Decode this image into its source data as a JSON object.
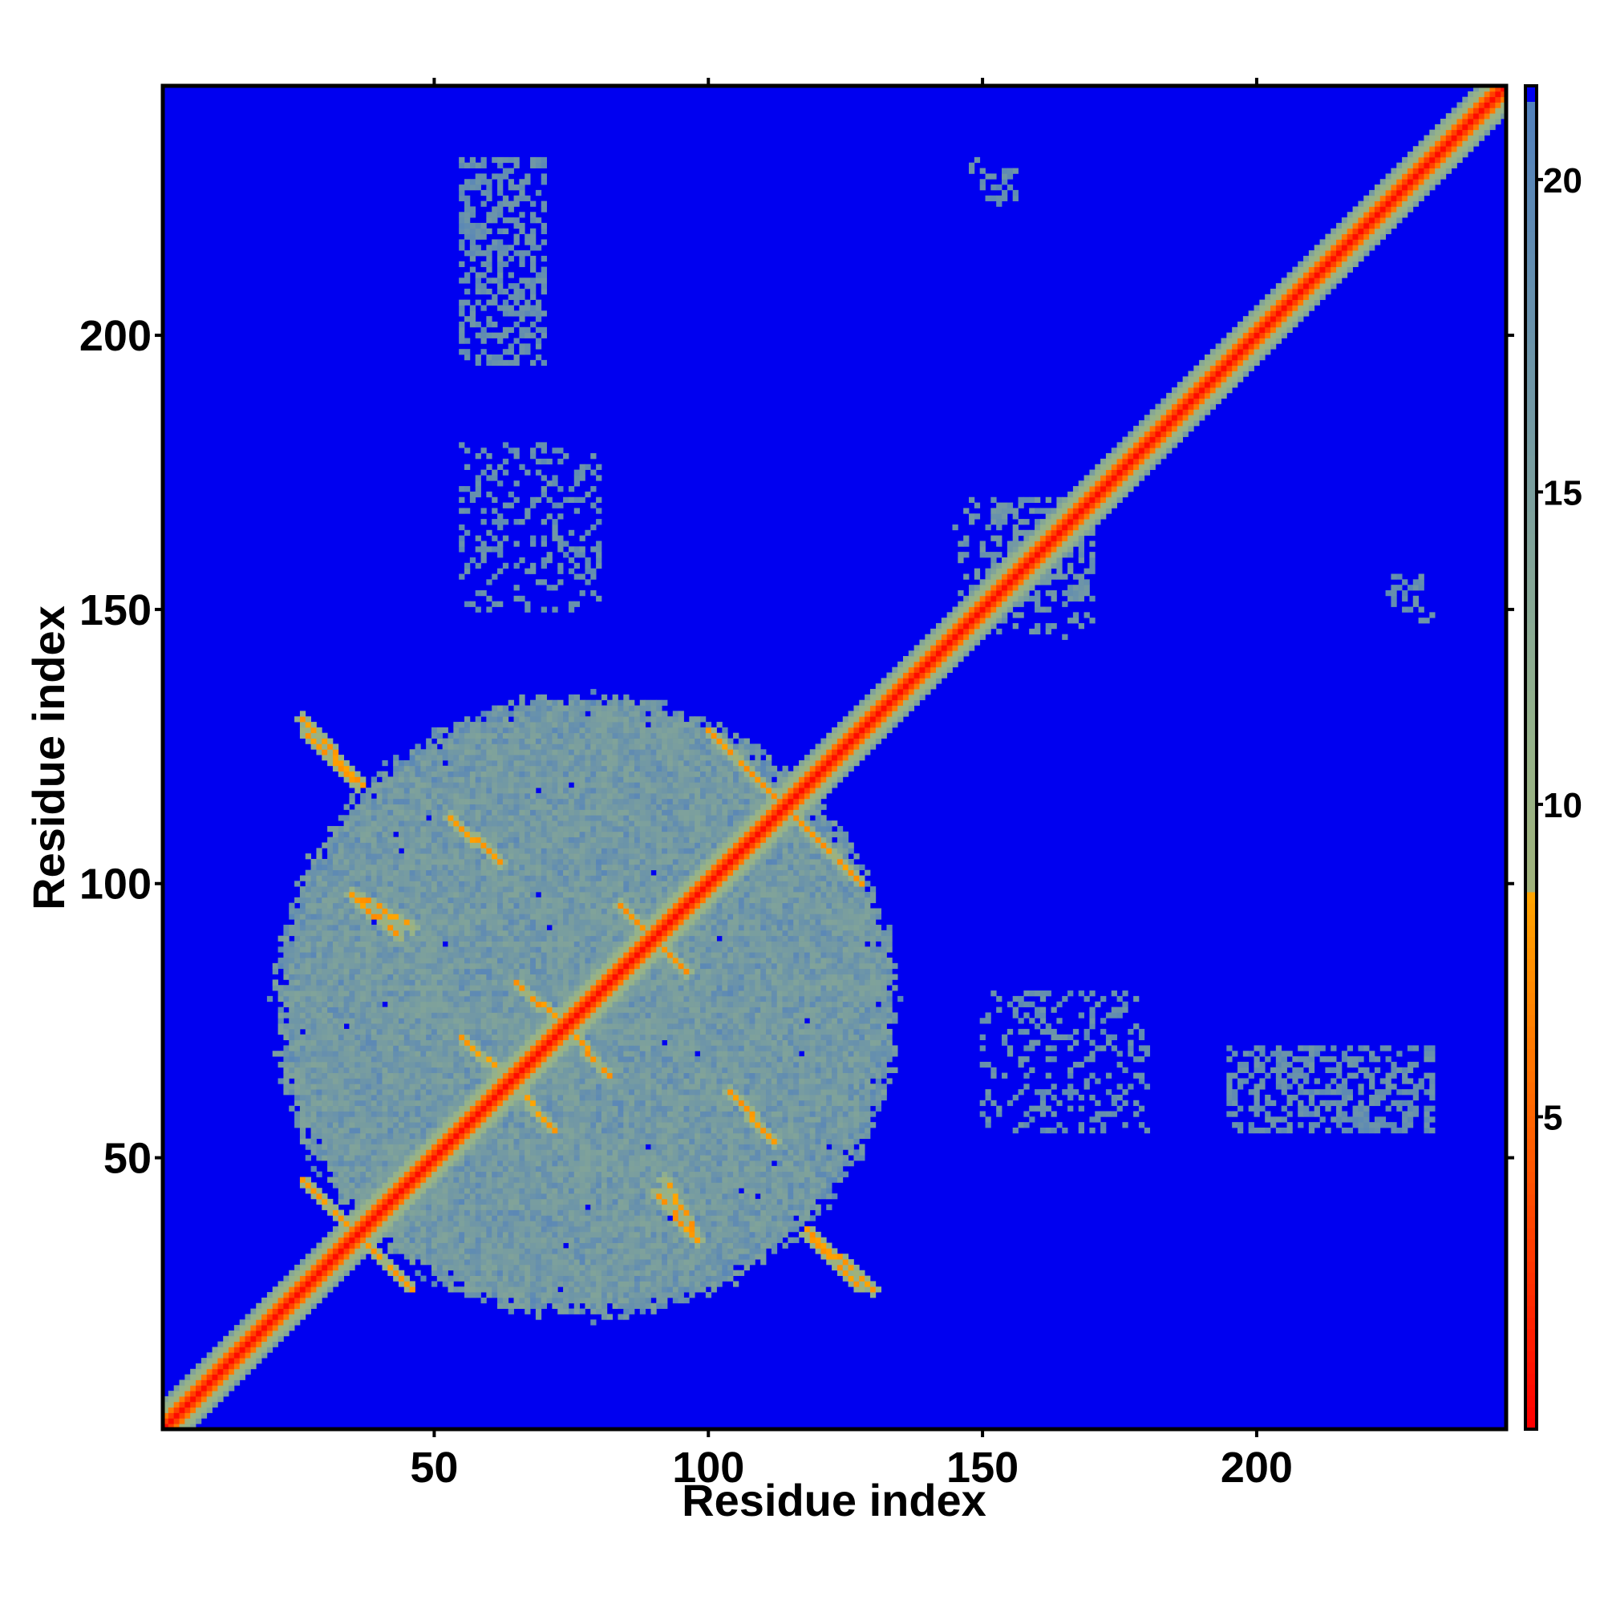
{
  "chart_data": {
    "type": "heatmap",
    "title": "",
    "xlabel": "Residue index",
    "ylabel": "Residue index",
    "xlim": [
      1,
      245
    ],
    "ylim": [
      1,
      245
    ],
    "x_ticks": [
      50,
      100,
      150,
      200
    ],
    "y_ticks": [
      50,
      100,
      150,
      200
    ],
    "colorbar": {
      "ticks": [
        5,
        10,
        15,
        20
      ],
      "range": [
        0,
        21.5
      ],
      "stops": [
        {
          "value": 0,
          "color": "#ff0000"
        },
        {
          "value": 4,
          "color": "#ff5500"
        },
        {
          "value": 8.5,
          "color": "#ffa500"
        },
        {
          "value": 8.5,
          "color": "#a0b27a"
        },
        {
          "value": 11,
          "color": "#95b28a"
        },
        {
          "value": 21.5,
          "color": "#4f7fbf"
        }
      ]
    },
    "background_color": "#0000f0",
    "legend_position": "right",
    "features": [
      {
        "kind": "diagonal",
        "from": 1,
        "to": 245,
        "value": 1
      },
      {
        "kind": "domain",
        "x": [
          25,
          130
        ],
        "y": [
          25,
          130
        ],
        "value": 17
      },
      {
        "kind": "anti-diagonal",
        "x": [
          26,
          36
        ],
        "y": [
          118,
          128
        ],
        "value": 7
      },
      {
        "kind": "anti-diagonal",
        "x": [
          36,
          46
        ],
        "y": [
          92,
          98
        ],
        "value": 7
      },
      {
        "kind": "anti-diagonal",
        "x": [
          53,
          62
        ],
        "y": [
          104,
          112
        ],
        "value": 7
      },
      {
        "kind": "anti-diagonal",
        "x": [
          55,
          64
        ],
        "y": [
          64,
          72
        ],
        "value": 7
      },
      {
        "kind": "anti-diagonal",
        "x": [
          65,
          74
        ],
        "y": [
          74,
          82
        ],
        "value": 7
      },
      {
        "kind": "anti-diagonal",
        "x": [
          84,
          96
        ],
        "y": [
          84,
          96
        ],
        "value": 7
      },
      {
        "kind": "anti-diagonal",
        "x": [
          100,
          126
        ],
        "y": [
          102,
          128
        ],
        "value": 7
      },
      {
        "kind": "anti-diagonal",
        "x": [
          104,
          112
        ],
        "y": [
          53,
          62
        ],
        "value": 7
      },
      {
        "kind": "anti-diagonal",
        "x": [
          90,
          98
        ],
        "y": [
          35,
          44
        ],
        "value": 7
      },
      {
        "kind": "anti-diagonal",
        "x": [
          26,
          45
        ],
        "y": [
          27,
          46
        ],
        "value": 7
      },
      {
        "kind": "anti-diagonal",
        "x": [
          118,
          130
        ],
        "y": [
          26,
          37
        ],
        "value": 7
      },
      {
        "kind": "cluster",
        "x": [
          145,
          170
        ],
        "y": [
          152,
          170
        ],
        "value": 17
      },
      {
        "kind": "cluster",
        "x": [
          55,
          70
        ],
        "y": [
          195,
          232
        ],
        "value": 18
      },
      {
        "kind": "cluster",
        "x": [
          148,
          156
        ],
        "y": [
          225,
          232
        ],
        "value": 18
      },
      {
        "kind": "cluster",
        "x": [
          224,
          232
        ],
        "y": [
          148,
          156
        ],
        "value": 18
      },
      {
        "kind": "cluster",
        "x": [
          195,
          232
        ],
        "y": [
          55,
          70
        ],
        "value": 18
      },
      {
        "kind": "cluster",
        "x": [
          150,
          180
        ],
        "y": [
          55,
          80
        ],
        "value": 18
      }
    ]
  }
}
